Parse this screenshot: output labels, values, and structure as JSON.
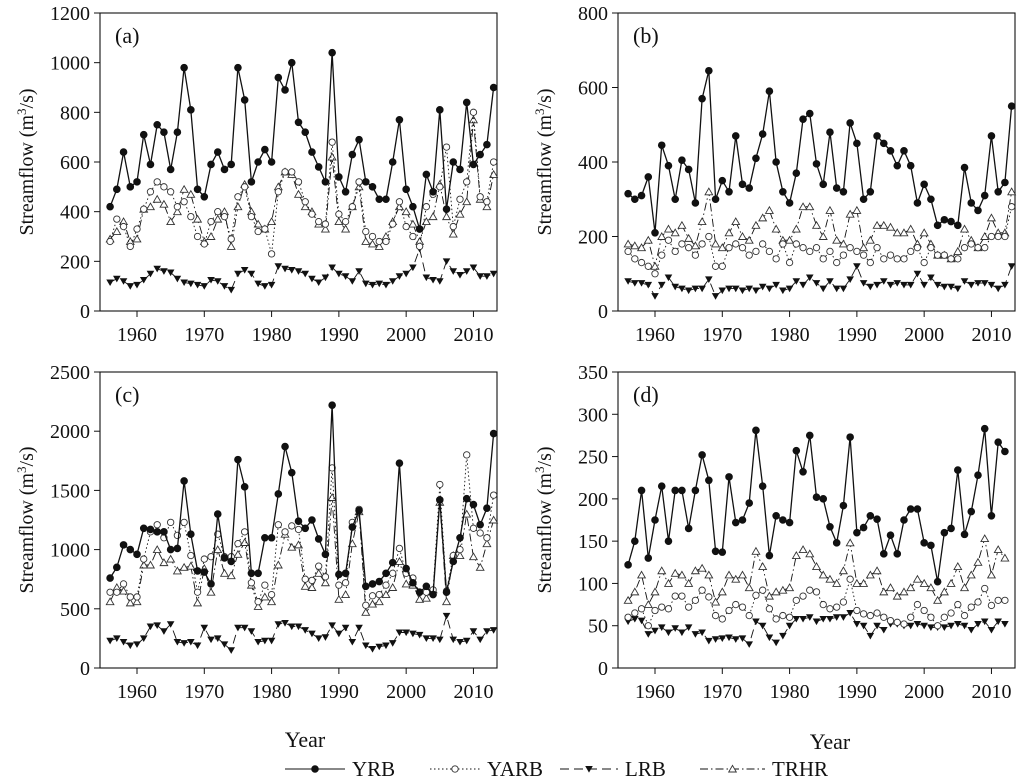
{
  "figure": {
    "xlabel": "Year",
    "legend": [
      {
        "name": "YRB",
        "style": "solid",
        "marker": "filled-circle"
      },
      {
        "name": "YARB",
        "style": "dotted",
        "marker": "open-circle"
      },
      {
        "name": "LRB",
        "style": "dashed",
        "marker": "filled-triangle-down"
      },
      {
        "name": "TRHR",
        "style": "dashdot",
        "marker": "open-triangle-up"
      }
    ]
  },
  "chart_data": [
    {
      "type": "line",
      "label": "(a)",
      "ylabel": "Streamflow (m³/s)",
      "ylabel_main": "Streamflow (m",
      "ylabel_sup": "3",
      "ylabel_end": "/s)",
      "xlabel": "",
      "xlim": [
        1954.5,
        2013.5
      ],
      "ylim": [
        0,
        1200
      ],
      "xticks": [
        1960,
        1970,
        1980,
        1990,
        2000,
        2010
      ],
      "yticks": [
        0,
        200,
        400,
        600,
        800,
        1000,
        1200
      ],
      "x_start": 1956,
      "series": [
        {
          "name": "YRB",
          "values": [
            420,
            490,
            640,
            500,
            520,
            710,
            590,
            750,
            720,
            570,
            720,
            980,
            810,
            490,
            460,
            590,
            640,
            570,
            590,
            980,
            850,
            520,
            600,
            650,
            600,
            940,
            890,
            1000,
            760,
            720,
            640,
            580,
            520,
            1040,
            540,
            480,
            630,
            690,
            520,
            500,
            450,
            450,
            600,
            770,
            490,
            420,
            330,
            550,
            480,
            810,
            410,
            600,
            570,
            840,
            590,
            630,
            670,
            900
          ]
        },
        {
          "name": "YARB",
          "values": [
            280,
            370,
            340,
            260,
            330,
            410,
            480,
            520,
            500,
            480,
            420,
            440,
            380,
            300,
            270,
            360,
            400,
            380,
            290,
            460,
            500,
            380,
            320,
            330,
            230,
            480,
            560,
            560,
            520,
            440,
            390,
            360,
            350,
            680,
            390,
            360,
            420,
            520,
            320,
            300,
            280,
            280,
            350,
            440,
            340,
            300,
            260,
            420,
            470,
            500,
            660,
            340,
            450,
            520,
            800,
            460,
            440,
            600
          ]
        },
        {
          "name": "LRB",
          "values": [
            115,
            130,
            120,
            100,
            105,
            125,
            150,
            170,
            160,
            155,
            130,
            115,
            110,
            105,
            100,
            125,
            120,
            100,
            85,
            150,
            165,
            150,
            110,
            100,
            105,
            180,
            170,
            165,
            160,
            150,
            130,
            115,
            135,
            175,
            150,
            140,
            120,
            160,
            110,
            105,
            110,
            105,
            120,
            140,
            150,
            175,
            250,
            135,
            125,
            120,
            200,
            160,
            145,
            160,
            175,
            140,
            140,
            150
          ]
        },
        {
          "name": "TRHR",
          "values": [
            290,
            320,
            360,
            280,
            290,
            410,
            420,
            450,
            430,
            360,
            400,
            490,
            470,
            370,
            280,
            300,
            370,
            400,
            260,
            420,
            510,
            400,
            350,
            330,
            360,
            500,
            560,
            550,
            470,
            420,
            400,
            350,
            330,
            620,
            360,
            330,
            420,
            500,
            280,
            270,
            260,
            300,
            360,
            420,
            400,
            350,
            280,
            360,
            380,
            510,
            380,
            310,
            390,
            440,
            770,
            450,
            420,
            550
          ]
        }
      ]
    },
    {
      "type": "line",
      "label": "(b)",
      "ylabel": "Streamflow (m³/s)",
      "ylabel_main": "Streamflow (m",
      "ylabel_sup": "3",
      "ylabel_end": "/s)",
      "xlabel": "",
      "xlim": [
        1954.5,
        2013.5
      ],
      "ylim": [
        0,
        800
      ],
      "xticks": [
        1960,
        1970,
        1980,
        1990,
        2000,
        2010
      ],
      "yticks": [
        0,
        200,
        400,
        600,
        800
      ],
      "x_start": 1956,
      "series": [
        {
          "name": "YRB",
          "values": [
            315,
            300,
            310,
            360,
            210,
            445,
            390,
            300,
            405,
            380,
            290,
            570,
            645,
            300,
            350,
            320,
            470,
            340,
            330,
            410,
            475,
            590,
            400,
            320,
            290,
            370,
            515,
            530,
            395,
            340,
            480,
            330,
            320,
            505,
            450,
            300,
            320,
            470,
            450,
            430,
            390,
            430,
            390,
            290,
            340,
            300,
            230,
            245,
            240,
            230,
            385,
            290,
            270,
            310,
            470,
            320,
            345,
            550
          ]
        },
        {
          "name": "YARB",
          "values": [
            160,
            140,
            130,
            120,
            100,
            150,
            190,
            160,
            180,
            170,
            150,
            180,
            200,
            120,
            120,
            170,
            180,
            170,
            150,
            160,
            180,
            160,
            140,
            180,
            130,
            180,
            170,
            160,
            170,
            140,
            160,
            130,
            150,
            170,
            160,
            150,
            130,
            170,
            140,
            150,
            140,
            140,
            160,
            170,
            130,
            170,
            150,
            150,
            140,
            140,
            170,
            180,
            170,
            170,
            200,
            200,
            200,
            280
          ]
        },
        {
          "name": "LRB",
          "values": [
            80,
            75,
            75,
            70,
            40,
            70,
            90,
            65,
            60,
            55,
            60,
            60,
            85,
            40,
            55,
            60,
            60,
            55,
            60,
            55,
            65,
            60,
            70,
            55,
            60,
            80,
            70,
            90,
            75,
            60,
            80,
            60,
            60,
            85,
            120,
            75,
            65,
            70,
            80,
            70,
            75,
            70,
            70,
            100,
            70,
            90,
            70,
            65,
            65,
            60,
            80,
            70,
            75,
            75,
            70,
            60,
            70,
            120
          ]
        },
        {
          "name": "TRHR",
          "values": [
            180,
            175,
            170,
            190,
            120,
            200,
            220,
            210,
            230,
            195,
            175,
            240,
            320,
            180,
            170,
            210,
            240,
            200,
            190,
            230,
            250,
            270,
            220,
            190,
            190,
            220,
            280,
            280,
            230,
            200,
            270,
            190,
            180,
            260,
            270,
            170,
            190,
            230,
            230,
            225,
            210,
            210,
            220,
            180,
            210,
            180,
            150,
            150,
            140,
            160,
            220,
            190,
            170,
            200,
            250,
            210,
            210,
            320
          ]
        }
      ]
    },
    {
      "type": "line",
      "label": "(c)",
      "ylabel": "Streamflow (m³/s)",
      "ylabel_main": "Streamflow (m",
      "ylabel_sup": "3",
      "ylabel_end": "/s)",
      "xlabel": "Year",
      "xlim": [
        1954.5,
        2013.5
      ],
      "ylim": [
        0,
        2500
      ],
      "xticks": [
        1960,
        1970,
        1980,
        1990,
        2000,
        2010
      ],
      "yticks": [
        0,
        500,
        1000,
        1500,
        2000,
        2500
      ],
      "x_start": 1956,
      "series": [
        {
          "name": "YRB",
          "values": [
            760,
            850,
            1040,
            1000,
            960,
            1180,
            1170,
            1150,
            1150,
            1000,
            1010,
            1580,
            1130,
            820,
            810,
            710,
            1300,
            930,
            900,
            1760,
            1530,
            800,
            800,
            1100,
            1100,
            1470,
            1870,
            1650,
            1240,
            1180,
            1250,
            1090,
            960,
            2220,
            790,
            800,
            1190,
            1330,
            690,
            710,
            730,
            800,
            890,
            1730,
            840,
            720,
            640,
            690,
            620,
            1420,
            640,
            900,
            1100,
            1430,
            1380,
            1210,
            1350,
            1980
          ]
        },
        {
          "name": "YARB",
          "values": [
            640,
            640,
            710,
            600,
            600,
            920,
            1150,
            1210,
            1100,
            1230,
            1120,
            1230,
            950,
            640,
            920,
            940,
            1130,
            940,
            940,
            1050,
            1150,
            720,
            560,
            700,
            620,
            1210,
            1150,
            1200,
            1170,
            750,
            740,
            860,
            770,
            1690,
            700,
            720,
            1230,
            1340,
            530,
            610,
            620,
            700,
            800,
            1010,
            800,
            760,
            640,
            640,
            660,
            1550,
            650,
            950,
            1000,
            1800,
            1180,
            1140,
            1100,
            1460
          ]
        },
        {
          "name": "LRB",
          "values": [
            230,
            250,
            220,
            190,
            200,
            250,
            350,
            360,
            310,
            370,
            220,
            210,
            220,
            190,
            340,
            240,
            250,
            200,
            150,
            340,
            340,
            310,
            220,
            230,
            230,
            370,
            380,
            350,
            350,
            320,
            290,
            250,
            260,
            360,
            290,
            340,
            220,
            340,
            190,
            160,
            180,
            190,
            210,
            300,
            300,
            290,
            280,
            250,
            250,
            240,
            440,
            240,
            220,
            230,
            310,
            240,
            310,
            320
          ]
        },
        {
          "name": "TRHR",
          "values": [
            560,
            680,
            650,
            550,
            560,
            870,
            870,
            1000,
            890,
            920,
            820,
            850,
            860,
            550,
            840,
            640,
            1000,
            800,
            780,
            960,
            1060,
            700,
            520,
            600,
            560,
            870,
            1130,
            1020,
            1040,
            690,
            680,
            800,
            720,
            1440,
            580,
            620,
            1050,
            1320,
            470,
            540,
            560,
            620,
            680,
            900,
            710,
            700,
            580,
            590,
            660,
            1400,
            560,
            950,
            950,
            1300,
            940,
            850,
            1050,
            1250
          ]
        }
      ]
    },
    {
      "type": "line",
      "label": "(d)",
      "ylabel": "Streamflow (m³/s)",
      "ylabel_main": "Streamflow (m",
      "ylabel_sup": "3",
      "ylabel_end": "/s)",
      "xlabel": "Year",
      "xlim": [
        1954.5,
        2013.5
      ],
      "ylim": [
        0,
        350
      ],
      "xticks": [
        1960,
        1970,
        1980,
        1990,
        2000,
        2010
      ],
      "yticks": [
        0,
        50,
        100,
        150,
        200,
        250,
        300,
        350
      ],
      "x_start": 1956,
      "series": [
        {
          "name": "YRB",
          "values": [
            122,
            150,
            210,
            130,
            175,
            215,
            150,
            210,
            210,
            165,
            210,
            252,
            222,
            138,
            137,
            226,
            172,
            175,
            195,
            281,
            215,
            133,
            180,
            175,
            172,
            257,
            232,
            275,
            202,
            200,
            167,
            148,
            192,
            273,
            160,
            166,
            180,
            176,
            135,
            157,
            135,
            175,
            188,
            188,
            148,
            145,
            102,
            160,
            165,
            234,
            158,
            185,
            228,
            283,
            180,
            267,
            256
          ]
        },
        {
          "name": "YARB",
          "values": [
            60,
            65,
            70,
            50,
            68,
            72,
            70,
            85,
            85,
            72,
            80,
            92,
            84,
            62,
            58,
            68,
            75,
            72,
            62,
            86,
            92,
            70,
            58,
            62,
            60,
            80,
            85,
            92,
            90,
            75,
            70,
            72,
            78,
            105,
            68,
            64,
            62,
            65,
            60,
            56,
            54,
            52,
            60,
            75,
            68,
            60,
            50,
            60,
            65,
            75,
            62,
            72,
            78,
            94,
            74,
            80,
            80
          ]
        },
        {
          "name": "LRB",
          "values": [
            55,
            58,
            56,
            40,
            44,
            48,
            42,
            47,
            42,
            48,
            40,
            42,
            32,
            34,
            35,
            36,
            34,
            35,
            28,
            55,
            50,
            36,
            30,
            38,
            50,
            58,
            58,
            60,
            55,
            58,
            58,
            60,
            60,
            65,
            52,
            50,
            38,
            50,
            45,
            52,
            52,
            50,
            50,
            52,
            50,
            48,
            48,
            48,
            50,
            52,
            50,
            45,
            52,
            55,
            45,
            55,
            52
          ]
        },
        {
          "name": "TRHR",
          "values": [
            80,
            90,
            110,
            75,
            90,
            115,
            100,
            112,
            110,
            100,
            115,
            118,
            110,
            78,
            90,
            110,
            105,
            110,
            95,
            138,
            120,
            85,
            90,
            92,
            95,
            133,
            140,
            135,
            120,
            110,
            105,
            100,
            115,
            148,
            100,
            100,
            110,
            115,
            90,
            95,
            85,
            90,
            95,
            105,
            100,
            95,
            80,
            90,
            100,
            120,
            95,
            110,
            125,
            153,
            110,
            140,
            130
          ]
        }
      ]
    }
  ]
}
